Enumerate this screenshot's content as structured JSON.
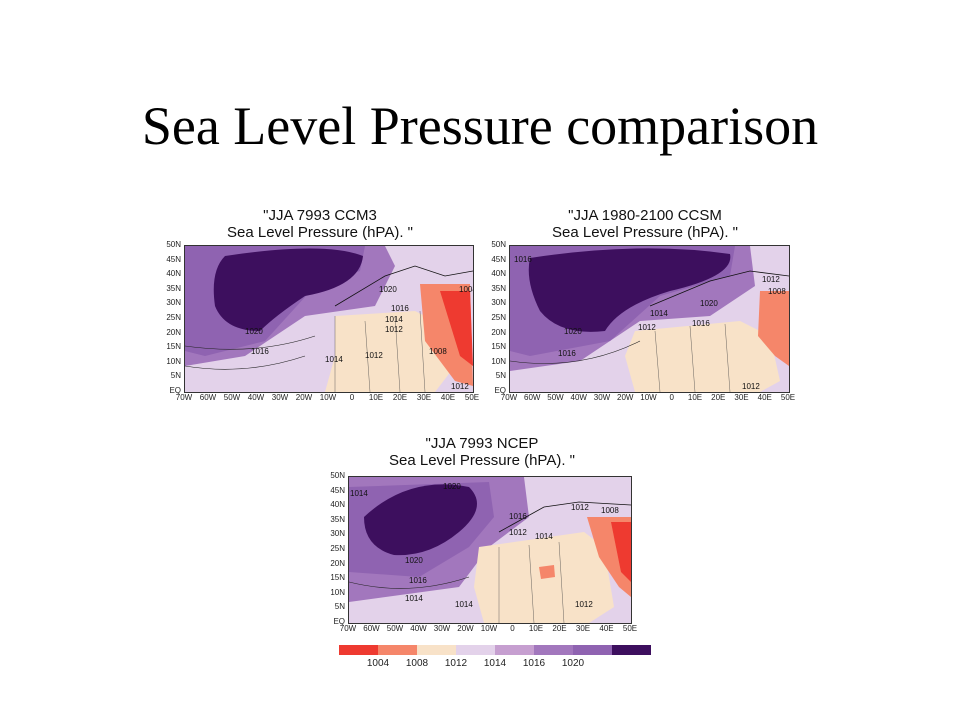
{
  "slide": {
    "title": "Sea Level Pressure comparison"
  },
  "axes": {
    "lat_labels": [
      "50N",
      "45N",
      "40N",
      "35N",
      "30N",
      "25N",
      "20N",
      "15N",
      "10N",
      "5N",
      "EQ"
    ],
    "lon_labels": [
      "70W",
      "60W",
      "50W",
      "40W",
      "30W",
      "20W",
      "10W",
      "0",
      "10E",
      "20E",
      "30E",
      "40E",
      "50E"
    ]
  },
  "panels": [
    {
      "id": "ccm3",
      "title_line1": "\"JJA 7993 CCM3",
      "title_line2": "Sea Level Pressure (hPA). \"",
      "contour_labels": [
        "1020",
        "1016",
        "1014",
        "1012",
        "1020",
        "1016",
        "1014",
        "1012",
        "1008",
        "1004",
        "1012"
      ]
    },
    {
      "id": "ccsm",
      "title_line1": "\"JJA 1980-2100 CCSM",
      "title_line2": "Sea Level Pressure (hPA). \"",
      "contour_labels": [
        "1016",
        "1020",
        "1016",
        "1014",
        "1012",
        "1020",
        "1016",
        "1012",
        "1008",
        "1012"
      ]
    },
    {
      "id": "ncep",
      "title_line1": "\"JJA 7993 NCEP",
      "title_line2": "Sea Level Pressure (hPA). \"",
      "contour_labels": [
        "1014",
        "1020",
        "1016",
        "1012",
        "1014",
        "1020",
        "1016",
        "1014",
        "1014",
        "1012",
        "1008",
        "1012"
      ]
    }
  ],
  "legend": {
    "levels": [
      "1004",
      "1008",
      "1012",
      "1014",
      "1016",
      "1020"
    ],
    "colors": [
      "#ee3a30",
      "#f5866a",
      "#f8e2c8",
      "#e3d2ea",
      "#c69fd0",
      "#a277bd",
      "#8f63b1",
      "#3d0f5e"
    ]
  }
}
